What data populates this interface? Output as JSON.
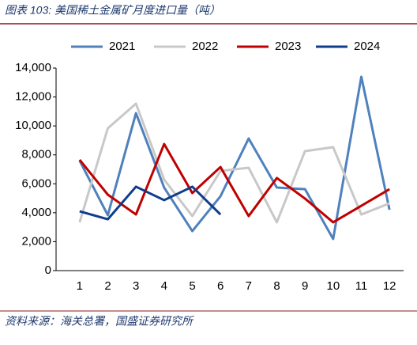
{
  "chart_data": {
    "type": "line",
    "title": "图表 103:  美国稀土金属矿月度进口量（吨）",
    "source": "资料来源：海关总署，国盛证券研究所",
    "categories": [
      "1",
      "2",
      "3",
      "4",
      "5",
      "6",
      "7",
      "8",
      "9",
      "10",
      "11",
      "12"
    ],
    "series": [
      {
        "name": "2021",
        "color": "#4f81bd",
        "values": [
          7600,
          3830,
          10880,
          5740,
          2730,
          5140,
          9130,
          5740,
          5630,
          2190,
          13400,
          4210
        ]
      },
      {
        "name": "2022",
        "color": "#c8c8c8",
        "values": [
          3340,
          9840,
          11540,
          6290,
          3770,
          6890,
          7110,
          3340,
          8260,
          8530,
          3880,
          4650
        ]
      },
      {
        "name": "2023",
        "color": "#c00000",
        "values": [
          7660,
          5250,
          3880,
          8750,
          5360,
          7160,
          3770,
          6400,
          4980,
          3340,
          4480,
          5630
        ]
      },
      {
        "name": "2024",
        "color": "#0f3d8c",
        "values": [
          4100,
          3550,
          5800,
          4870,
          5800,
          3880,
          null,
          null,
          null,
          null,
          null,
          null
        ]
      }
    ],
    "ylim": [
      0,
      14000
    ],
    "yticks": [
      0,
      {
        "value": 2000,
        "label": "2,000"
      },
      {
        "value": 4000,
        "label": "4,000"
      },
      {
        "value": 6000,
        "label": "6,000"
      },
      {
        "value": 8000,
        "label": "8,000"
      },
      {
        "value": 10000,
        "label": "10,000"
      },
      {
        "value": 12000,
        "label": "12,000"
      },
      {
        "value": 14000,
        "label": "14,000"
      }
    ],
    "grid": false,
    "legend": "top"
  }
}
